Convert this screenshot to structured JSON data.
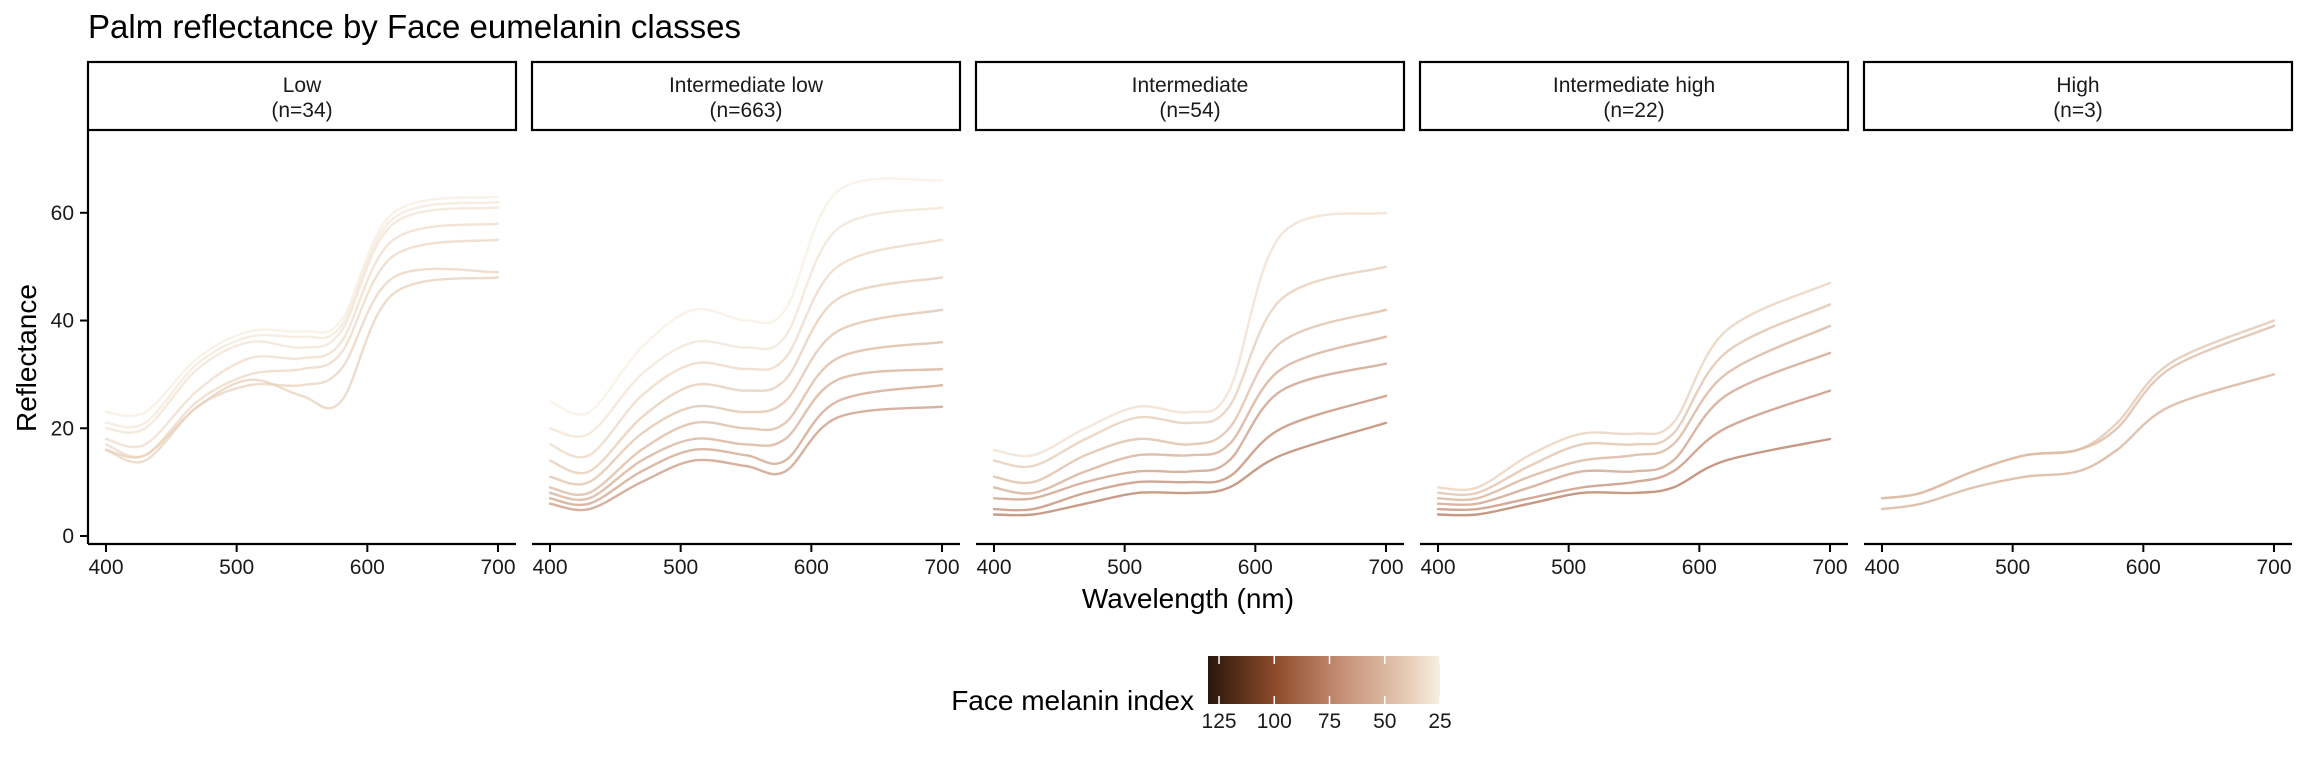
{
  "chart_data": {
    "type": "line",
    "title": "Palm reflectance by Face eumelanin classes",
    "xlabel": "Wavelength (nm)",
    "ylabel": "Reflectance",
    "xlim": [
      400,
      700
    ],
    "ylim": [
      0,
      75
    ],
    "xticks": [
      400,
      500,
      600,
      700
    ],
    "yticks": [
      0,
      20,
      40,
      60
    ],
    "color_scale": {
      "title": "Face melanin index",
      "ticks": [
        125,
        100,
        75,
        50,
        25
      ],
      "domain": [
        25,
        130
      ],
      "stops": [
        {
          "value": 130,
          "color": "#2a160c"
        },
        {
          "value": 100,
          "color": "#8e4a2a"
        },
        {
          "value": 70,
          "color": "#c48e74"
        },
        {
          "value": 40,
          "color": "#e6cbb4"
        },
        {
          "value": 25,
          "color": "#f8efe2"
        }
      ]
    },
    "panels": [
      {
        "label": "Low",
        "n_label": "(n=34)",
        "series": [
          {
            "melanin": 26,
            "values": [
              23,
              23,
              33,
              38,
              38,
              40,
              60,
              63
            ]
          },
          {
            "melanin": 28,
            "values": [
              21,
              21,
              32,
              37,
              37,
              39,
              59,
              62
            ]
          },
          {
            "melanin": 30,
            "values": [
              20,
              20,
              31,
              36,
              35,
              38,
              58,
              61
            ]
          },
          {
            "melanin": 33,
            "values": [
              18,
              17,
              27,
              33,
              33,
              36,
              55,
              58
            ]
          },
          {
            "melanin": 35,
            "values": [
              17,
              15,
              25,
              30,
              31,
              34,
              52,
              55
            ]
          },
          {
            "melanin": 37,
            "values": [
              16,
              14,
              24,
              28,
              28,
              31,
              48,
              49
            ]
          },
          {
            "melanin": 38,
            "values": [
              16,
              15,
              24,
              29,
              26,
              25,
              45,
              48
            ]
          }
        ]
      },
      {
        "label": "Intermediate low",
        "n_label": "(n=663)",
        "series": [
          {
            "melanin": 25,
            "values": [
              25,
              23,
              35,
              42,
              40,
              42,
              64,
              66
            ]
          },
          {
            "melanin": 30,
            "values": [
              20,
              19,
              30,
              36,
              35,
              37,
              57,
              61
            ]
          },
          {
            "melanin": 35,
            "values": [
              17,
              15,
              26,
              32,
              31,
              33,
              50,
              55
            ]
          },
          {
            "melanin": 40,
            "values": [
              14,
              12,
              22,
              28,
              27,
              29,
              44,
              48
            ]
          },
          {
            "melanin": 45,
            "values": [
              11,
              10,
              19,
              24,
              23,
              25,
              38,
              42
            ]
          },
          {
            "melanin": 50,
            "values": [
              9,
              8,
              16,
              21,
              20,
              21,
              33,
              36
            ]
          },
          {
            "melanin": 55,
            "values": [
              8,
              7,
              14,
              18,
              17,
              18,
              29,
              31
            ]
          },
          {
            "melanin": 60,
            "values": [
              7,
              6,
              12,
              16,
              15,
              14,
              25,
              28
            ]
          },
          {
            "melanin": 65,
            "values": [
              6,
              5,
              10,
              14,
              13,
              12,
              22,
              24
            ]
          }
        ]
      },
      {
        "label": "Intermediate",
        "n_label": "(n=54)",
        "series": [
          {
            "melanin": 32,
            "values": [
              16,
              15,
              20,
              24,
              23,
              27,
              56,
              60
            ]
          },
          {
            "melanin": 40,
            "values": [
              14,
              13,
              18,
              22,
              21,
              24,
              44,
              50
            ]
          },
          {
            "melanin": 48,
            "values": [
              11,
              10,
              15,
              18,
              17,
              20,
              36,
              42
            ]
          },
          {
            "melanin": 56,
            "values": [
              9,
              8,
              12,
              15,
              15,
              17,
              31,
              37
            ]
          },
          {
            "melanin": 64,
            "values": [
              7,
              7,
              10,
              12,
              12,
              14,
              27,
              32
            ]
          },
          {
            "melanin": 72,
            "values": [
              5,
              5,
              8,
              10,
              10,
              11,
              20,
              26
            ]
          },
          {
            "melanin": 78,
            "values": [
              4,
              4,
              6,
              8,
              8,
              9,
              15,
              21
            ]
          }
        ]
      },
      {
        "label": "Intermediate high",
        "n_label": "(n=22)",
        "series": [
          {
            "melanin": 38,
            "values": [
              9,
              9,
              15,
              19,
              19,
              21,
              38,
              47
            ]
          },
          {
            "melanin": 46,
            "values": [
              8,
              8,
              13,
              17,
              17,
              19,
              34,
              43
            ]
          },
          {
            "melanin": 54,
            "values": [
              7,
              7,
              11,
              14,
              15,
              17,
              30,
              39
            ]
          },
          {
            "melanin": 62,
            "values": [
              6,
              6,
              9,
              12,
              12,
              14,
              26,
              34
            ]
          },
          {
            "melanin": 70,
            "values": [
              5,
              5,
              7,
              9,
              10,
              12,
              20,
              27
            ]
          },
          {
            "melanin": 80,
            "values": [
              4,
              4,
              6,
              8,
              8,
              9,
              14,
              18
            ]
          }
        ]
      },
      {
        "label": "High",
        "n_label": "(n=3)",
        "series": [
          {
            "melanin": 45,
            "values": [
              7,
              8,
              12,
              15,
              16,
              21,
              32,
              40
            ]
          },
          {
            "melanin": 50,
            "values": [
              7,
              8,
              12,
              15,
              16,
              20,
              31,
              39
            ]
          },
          {
            "melanin": 55,
            "values": [
              5,
              6,
              9,
              11,
              12,
              16,
              24,
              30
            ]
          }
        ]
      }
    ],
    "wavelengths": [
      400,
      430,
      470,
      510,
      550,
      580,
      620,
      700
    ]
  }
}
